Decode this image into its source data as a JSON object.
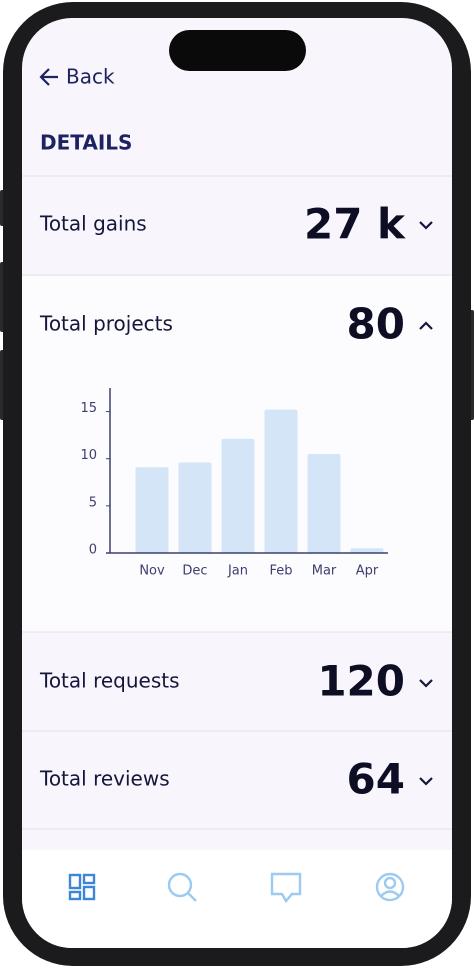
{
  "header": {
    "back": "Back",
    "title": "DETAILS"
  },
  "items": [
    {
      "label": "Total gains",
      "value": "27 k"
    },
    {
      "label": "Total projects",
      "value": "80"
    },
    {
      "label": "Total requests",
      "value": "120"
    },
    {
      "label": "Total reviews",
      "value": "64"
    }
  ],
  "chart_data": {
    "type": "bar",
    "categories": [
      "Nov",
      "Dec",
      "Jan",
      "Feb",
      "Mar",
      "Apr"
    ],
    "values": [
      9.1,
      9.6,
      12.1,
      15.2,
      10.5,
      0.5
    ],
    "color": "#d4e5f8",
    "ylim": [
      0,
      17.5
    ],
    "yticks": [
      0,
      5,
      10,
      15
    ]
  }
}
